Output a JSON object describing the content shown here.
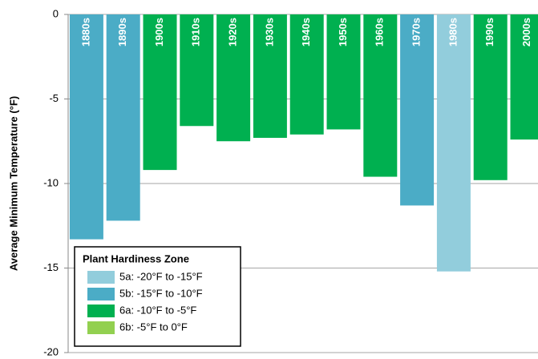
{
  "chart_data": {
    "type": "bar",
    "y_label": "Average Minimum Temperature (°F)",
    "categories": [
      "1880s",
      "1890s",
      "1900s",
      "1910s",
      "1920s",
      "1930s",
      "1940s",
      "1950s",
      "1960s",
      "1970s",
      "1980s",
      "1990s",
      "2000s"
    ],
    "values": [
      -13.3,
      -12.2,
      -9.2,
      -6.6,
      -7.5,
      -7.3,
      -7.1,
      -6.8,
      -9.6,
      -11.3,
      -15.2,
      -9.8,
      -7.4
    ],
    "colors": [
      "#4bacc6",
      "#4bacc6",
      "#00b050",
      "#00b050",
      "#00b050",
      "#00b050",
      "#00b050",
      "#00b050",
      "#00b050",
      "#4bacc6",
      "#92cddc",
      "#00b050",
      "#00b050"
    ],
    "ylim": [
      -20,
      0
    ],
    "yticks": [
      0,
      -5,
      -10,
      -15,
      -20
    ],
    "grid": true,
    "legend": {
      "title": "Plant Hardiness Zone",
      "position": "lower left",
      "entries": [
        {
          "name": "5a: -20°F to -15°F",
          "color": "#92cddc"
        },
        {
          "name": "5b: -15°F to -10°F",
          "color": "#4bacc6"
        },
        {
          "name": "6a: -10°F to -5°F",
          "color": "#00b050"
        },
        {
          "name": "6b: -5°F to 0°F",
          "color": "#92d050"
        }
      ]
    }
  }
}
